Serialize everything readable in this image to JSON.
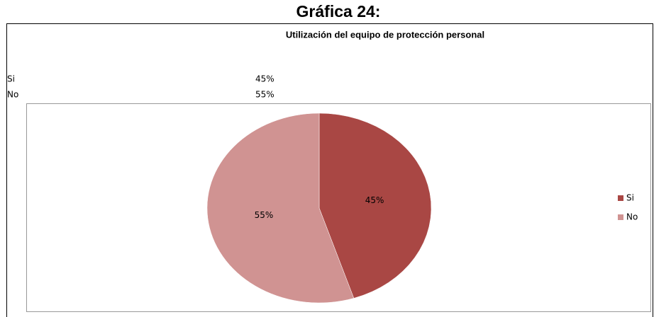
{
  "chart_data": {
    "type": "pie",
    "heading": "Gráfica 24:",
    "title": "Utilización del equipo de protección personal",
    "categories": [
      "Si",
      "No"
    ],
    "values": [
      45,
      55
    ],
    "value_labels": [
      "45%",
      "55%"
    ],
    "colors": [
      "#a94744",
      "#d09392"
    ],
    "legend": "right"
  }
}
